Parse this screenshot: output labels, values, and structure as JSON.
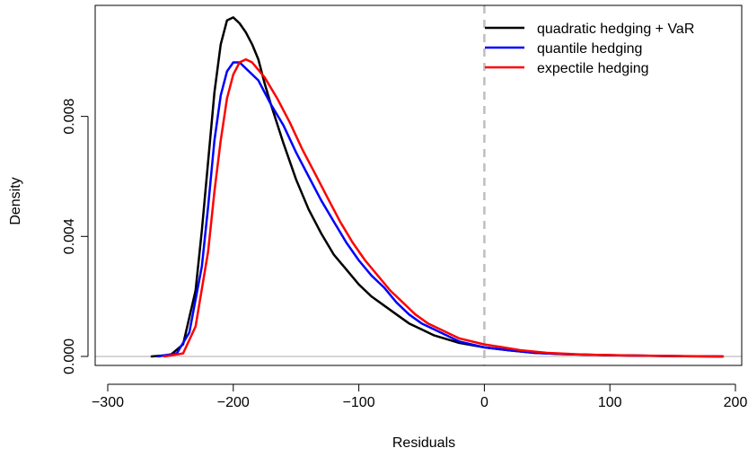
{
  "chart_data": {
    "type": "line",
    "title": "",
    "xlabel": "Residuals",
    "ylabel": "Density",
    "xlim": [
      -310,
      205
    ],
    "ylim": [
      -0.0003,
      0.0117
    ],
    "x_ticks": [
      {
        "value": -300,
        "label": "−300"
      },
      {
        "value": -200,
        "label": "−200"
      },
      {
        "value": -100,
        "label": "−100"
      },
      {
        "value": 0,
        "label": "0"
      },
      {
        "value": 100,
        "label": "100"
      },
      {
        "value": 200,
        "label": "200"
      }
    ],
    "y_ticks": [
      {
        "value": 0.0,
        "label": "0.000"
      },
      {
        "value": 0.004,
        "label": "0.004"
      },
      {
        "value": 0.008,
        "label": "0.008"
      }
    ],
    "reference_lines": [
      {
        "type": "horizontal",
        "value": 0,
        "color": "#bebebe",
        "style": "solid"
      },
      {
        "type": "vertical",
        "value": 0,
        "color": "#bebebe",
        "style": "dashed"
      }
    ],
    "legend_position": "top-right",
    "series": [
      {
        "name": "quadratic hedging + VaR",
        "color": "#000000",
        "points": [
          [
            -265,
            0
          ],
          [
            -250,
            5e-05
          ],
          [
            -240,
            0.0004
          ],
          [
            -230,
            0.0022
          ],
          [
            -225,
            0.0042
          ],
          [
            -220,
            0.0065
          ],
          [
            -215,
            0.0088
          ],
          [
            -210,
            0.0104
          ],
          [
            -205,
            0.0112
          ],
          [
            -200,
            0.0113
          ],
          [
            -195,
            0.0111
          ],
          [
            -190,
            0.0108
          ],
          [
            -185,
            0.0104
          ],
          [
            -180,
            0.0099
          ],
          [
            -175,
            0.0091
          ],
          [
            -170,
            0.0084
          ],
          [
            -160,
            0.0071
          ],
          [
            -150,
            0.0059
          ],
          [
            -140,
            0.0049
          ],
          [
            -130,
            0.0041
          ],
          [
            -120,
            0.0034
          ],
          [
            -110,
            0.0029
          ],
          [
            -100,
            0.0024
          ],
          [
            -90,
            0.002
          ],
          [
            -80,
            0.0017
          ],
          [
            -70,
            0.0014
          ],
          [
            -60,
            0.0011
          ],
          [
            -50,
            0.0009
          ],
          [
            -40,
            0.0007
          ],
          [
            -20,
            0.00045
          ],
          [
            0,
            0.0003
          ],
          [
            20,
            0.0002
          ],
          [
            40,
            0.00012
          ],
          [
            60,
            8e-05
          ],
          [
            100,
            4e-05
          ],
          [
            150,
            1e-05
          ],
          [
            190,
            0
          ]
        ]
      },
      {
        "name": "quantile hedging",
        "color": "#0000ff",
        "points": [
          [
            -260,
            0
          ],
          [
            -245,
            0.0001
          ],
          [
            -235,
            0.0008
          ],
          [
            -225,
            0.003
          ],
          [
            -220,
            0.005
          ],
          [
            -215,
            0.0072
          ],
          [
            -210,
            0.0087
          ],
          [
            -205,
            0.0095
          ],
          [
            -200,
            0.0098
          ],
          [
            -195,
            0.0098
          ],
          [
            -190,
            0.0096
          ],
          [
            -180,
            0.0092
          ],
          [
            -170,
            0.0084
          ],
          [
            -160,
            0.0077
          ],
          [
            -150,
            0.0068
          ],
          [
            -140,
            0.006
          ],
          [
            -130,
            0.0052
          ],
          [
            -120,
            0.0045
          ],
          [
            -110,
            0.0038
          ],
          [
            -100,
            0.0032
          ],
          [
            -90,
            0.0027
          ],
          [
            -80,
            0.0023
          ],
          [
            -70,
            0.0018
          ],
          [
            -60,
            0.0014
          ],
          [
            -50,
            0.0011
          ],
          [
            -40,
            0.0009
          ],
          [
            -20,
            0.0005
          ],
          [
            0,
            0.0003
          ],
          [
            20,
            0.0002
          ],
          [
            40,
            0.00012
          ],
          [
            60,
            8e-05
          ],
          [
            100,
            4e-05
          ],
          [
            150,
            1e-05
          ],
          [
            190,
            0
          ]
        ]
      },
      {
        "name": "expectile hedging",
        "color": "#ff0000",
        "points": [
          [
            -255,
            0
          ],
          [
            -240,
            0.0001
          ],
          [
            -230,
            0.001
          ],
          [
            -220,
            0.0035
          ],
          [
            -215,
            0.0055
          ],
          [
            -210,
            0.0072
          ],
          [
            -205,
            0.0086
          ],
          [
            -200,
            0.0094
          ],
          [
            -195,
            0.0098
          ],
          [
            -190,
            0.0099
          ],
          [
            -185,
            0.0098
          ],
          [
            -175,
            0.0093
          ],
          [
            -165,
            0.0086
          ],
          [
            -155,
            0.0078
          ],
          [
            -145,
            0.0069
          ],
          [
            -135,
            0.0061
          ],
          [
            -125,
            0.0053
          ],
          [
            -115,
            0.0045
          ],
          [
            -105,
            0.0038
          ],
          [
            -95,
            0.0032
          ],
          [
            -85,
            0.0027
          ],
          [
            -75,
            0.0022
          ],
          [
            -65,
            0.0018
          ],
          [
            -55,
            0.0014
          ],
          [
            -45,
            0.0011
          ],
          [
            -35,
            0.0009
          ],
          [
            -20,
            0.0006
          ],
          [
            0,
            0.0004
          ],
          [
            15,
            0.0003
          ],
          [
            30,
            0.0002
          ],
          [
            50,
            0.00012
          ],
          [
            80,
            6e-05
          ],
          [
            120,
            3e-05
          ],
          [
            160,
            1e-05
          ],
          [
            190,
            0
          ]
        ]
      }
    ]
  }
}
